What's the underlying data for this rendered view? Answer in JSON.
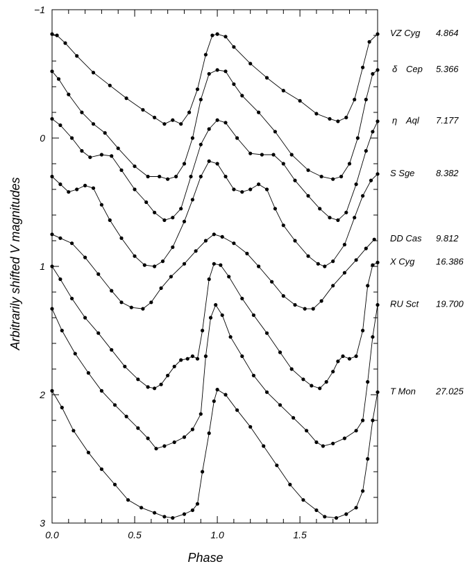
{
  "chart_data": {
    "type": "line",
    "xlabel": "Phase",
    "ylabel": "Arbitrarily shifted V magnitudes",
    "xlim": [
      0.0,
      1.97
    ],
    "ylim": [
      3.0,
      -1.0
    ],
    "y_inverted": true,
    "x_tick_labels": [
      {
        "value": 0.0,
        "label": "0.0"
      },
      {
        "value": 0.5,
        "label": "0.5"
      },
      {
        "value": 1.0,
        "label": "1.0"
      },
      {
        "value": 1.5,
        "label": "1.5"
      }
    ],
    "y_tick_labels": [
      {
        "value": -1,
        "label": "−1"
      },
      {
        "value": 0,
        "label": "0"
      },
      {
        "value": 1,
        "label": "1"
      },
      {
        "value": 2,
        "label": "2"
      },
      {
        "value": 3,
        "label": "3"
      }
    ],
    "grid": false,
    "series": [
      {
        "name": "VZ Cyg",
        "period": "4.864",
        "greek": "",
        "points": [
          [
            0.0,
            -0.81
          ],
          [
            0.03,
            -0.8
          ],
          [
            0.08,
            -0.74
          ],
          [
            0.15,
            -0.64
          ],
          [
            0.25,
            -0.51
          ],
          [
            0.35,
            -0.41
          ],
          [
            0.45,
            -0.31
          ],
          [
            0.55,
            -0.22
          ],
          [
            0.62,
            -0.16
          ],
          [
            0.68,
            -0.11
          ],
          [
            0.73,
            -0.14
          ],
          [
            0.78,
            -0.11
          ],
          [
            0.83,
            -0.2
          ],
          [
            0.88,
            -0.38
          ],
          [
            0.93,
            -0.65
          ],
          [
            0.97,
            -0.8
          ],
          [
            1.0,
            -0.81
          ],
          [
            1.05,
            -0.79
          ],
          [
            1.1,
            -0.71
          ],
          [
            1.2,
            -0.58
          ],
          [
            1.3,
            -0.47
          ],
          [
            1.4,
            -0.37
          ],
          [
            1.5,
            -0.29
          ],
          [
            1.6,
            -0.19
          ],
          [
            1.68,
            -0.15
          ],
          [
            1.73,
            -0.13
          ],
          [
            1.78,
            -0.16
          ],
          [
            1.83,
            -0.3
          ],
          [
            1.88,
            -0.55
          ],
          [
            1.92,
            -0.75
          ],
          [
            1.97,
            -0.81
          ]
        ]
      },
      {
        "name": "Cep",
        "period": "5.366",
        "greek": "δ",
        "points": [
          [
            0.0,
            -0.52
          ],
          [
            0.04,
            -0.46
          ],
          [
            0.1,
            -0.34
          ],
          [
            0.18,
            -0.2
          ],
          [
            0.25,
            -0.11
          ],
          [
            0.32,
            -0.04
          ],
          [
            0.4,
            0.08
          ],
          [
            0.5,
            0.22
          ],
          [
            0.58,
            0.3
          ],
          [
            0.65,
            0.3
          ],
          [
            0.7,
            0.32
          ],
          [
            0.75,
            0.3
          ],
          [
            0.8,
            0.2
          ],
          [
            0.85,
            0.0
          ],
          [
            0.9,
            -0.3
          ],
          [
            0.95,
            -0.5
          ],
          [
            1.0,
            -0.53
          ],
          [
            1.05,
            -0.52
          ],
          [
            1.1,
            -0.42
          ],
          [
            1.15,
            -0.33
          ],
          [
            1.25,
            -0.2
          ],
          [
            1.35,
            -0.05
          ],
          [
            1.45,
            0.13
          ],
          [
            1.55,
            0.25
          ],
          [
            1.63,
            0.3
          ],
          [
            1.7,
            0.32
          ],
          [
            1.75,
            0.3
          ],
          [
            1.8,
            0.2
          ],
          [
            1.85,
            0.0
          ],
          [
            1.9,
            -0.3
          ],
          [
            1.94,
            -0.5
          ],
          [
            1.97,
            -0.53
          ]
        ]
      },
      {
        "name": "Aql",
        "period": "7.177",
        "greek": "η",
        "points": [
          [
            0.0,
            -0.15
          ],
          [
            0.05,
            -0.1
          ],
          [
            0.12,
            0.0
          ],
          [
            0.18,
            0.1
          ],
          [
            0.23,
            0.15
          ],
          [
            0.3,
            0.13
          ],
          [
            0.36,
            0.14
          ],
          [
            0.42,
            0.25
          ],
          [
            0.5,
            0.4
          ],
          [
            0.57,
            0.5
          ],
          [
            0.62,
            0.58
          ],
          [
            0.68,
            0.64
          ],
          [
            0.73,
            0.62
          ],
          [
            0.78,
            0.55
          ],
          [
            0.84,
            0.3
          ],
          [
            0.9,
            0.05
          ],
          [
            0.95,
            -0.07
          ],
          [
            1.0,
            -0.14
          ],
          [
            1.05,
            -0.12
          ],
          [
            1.12,
            0.0
          ],
          [
            1.2,
            0.12
          ],
          [
            1.27,
            0.13
          ],
          [
            1.34,
            0.13
          ],
          [
            1.4,
            0.2
          ],
          [
            1.47,
            0.33
          ],
          [
            1.55,
            0.45
          ],
          [
            1.62,
            0.55
          ],
          [
            1.68,
            0.62
          ],
          [
            1.73,
            0.64
          ],
          [
            1.78,
            0.58
          ],
          [
            1.84,
            0.36
          ],
          [
            1.9,
            0.1
          ],
          [
            1.94,
            -0.05
          ],
          [
            1.97,
            -0.13
          ]
        ]
      },
      {
        "name": "S Sge",
        "period": "8.382",
        "greek": "",
        "points": [
          [
            0.0,
            0.3
          ],
          [
            0.05,
            0.36
          ],
          [
            0.1,
            0.42
          ],
          [
            0.15,
            0.4
          ],
          [
            0.2,
            0.37
          ],
          [
            0.25,
            0.39
          ],
          [
            0.3,
            0.52
          ],
          [
            0.35,
            0.64
          ],
          [
            0.42,
            0.78
          ],
          [
            0.5,
            0.92
          ],
          [
            0.56,
            0.99
          ],
          [
            0.62,
            1.0
          ],
          [
            0.67,
            0.96
          ],
          [
            0.73,
            0.85
          ],
          [
            0.8,
            0.65
          ],
          [
            0.85,
            0.48
          ],
          [
            0.9,
            0.3
          ],
          [
            0.95,
            0.18
          ],
          [
            1.0,
            0.2
          ],
          [
            1.05,
            0.3
          ],
          [
            1.1,
            0.4
          ],
          [
            1.15,
            0.42
          ],
          [
            1.2,
            0.4
          ],
          [
            1.25,
            0.36
          ],
          [
            1.3,
            0.4
          ],
          [
            1.35,
            0.55
          ],
          [
            1.4,
            0.68
          ],
          [
            1.47,
            0.8
          ],
          [
            1.55,
            0.92
          ],
          [
            1.61,
            0.98
          ],
          [
            1.65,
            1.0
          ],
          [
            1.7,
            0.96
          ],
          [
            1.77,
            0.83
          ],
          [
            1.83,
            0.62
          ],
          [
            1.88,
            0.45
          ],
          [
            1.93,
            0.33
          ],
          [
            1.97,
            0.28
          ]
        ]
      },
      {
        "name": "DD Cas",
        "period": "9.812",
        "greek": "",
        "points": [
          [
            0.0,
            0.75
          ],
          [
            0.05,
            0.78
          ],
          [
            0.12,
            0.82
          ],
          [
            0.2,
            0.93
          ],
          [
            0.28,
            1.06
          ],
          [
            0.36,
            1.19
          ],
          [
            0.42,
            1.28
          ],
          [
            0.48,
            1.32
          ],
          [
            0.55,
            1.33
          ],
          [
            0.6,
            1.28
          ],
          [
            0.66,
            1.17
          ],
          [
            0.72,
            1.08
          ],
          [
            0.8,
            0.98
          ],
          [
            0.87,
            0.88
          ],
          [
            0.93,
            0.8
          ],
          [
            0.98,
            0.75
          ],
          [
            1.03,
            0.77
          ],
          [
            1.1,
            0.82
          ],
          [
            1.18,
            0.9
          ],
          [
            1.25,
            1.0
          ],
          [
            1.33,
            1.12
          ],
          [
            1.4,
            1.23
          ],
          [
            1.47,
            1.3
          ],
          [
            1.53,
            1.33
          ],
          [
            1.58,
            1.33
          ],
          [
            1.63,
            1.27
          ],
          [
            1.7,
            1.15
          ],
          [
            1.77,
            1.05
          ],
          [
            1.84,
            0.95
          ],
          [
            1.9,
            0.86
          ],
          [
            1.95,
            0.79
          ]
        ]
      },
      {
        "name": "X Cyg",
        "period": "16.386",
        "greek": "",
        "points": [
          [
            0.0,
            1.0
          ],
          [
            0.05,
            1.1
          ],
          [
            0.12,
            1.25
          ],
          [
            0.2,
            1.4
          ],
          [
            0.28,
            1.52
          ],
          [
            0.36,
            1.65
          ],
          [
            0.44,
            1.78
          ],
          [
            0.52,
            1.88
          ],
          [
            0.58,
            1.94
          ],
          [
            0.62,
            1.95
          ],
          [
            0.66,
            1.92
          ],
          [
            0.7,
            1.85
          ],
          [
            0.74,
            1.78
          ],
          [
            0.78,
            1.73
          ],
          [
            0.82,
            1.72
          ],
          [
            0.85,
            1.7
          ],
          [
            0.88,
            1.72
          ],
          [
            0.91,
            1.5
          ],
          [
            0.95,
            1.1
          ],
          [
            0.98,
            0.98
          ],
          [
            1.02,
            0.99
          ],
          [
            1.07,
            1.08
          ],
          [
            1.15,
            1.25
          ],
          [
            1.22,
            1.38
          ],
          [
            1.3,
            1.52
          ],
          [
            1.38,
            1.67
          ],
          [
            1.45,
            1.8
          ],
          [
            1.52,
            1.88
          ],
          [
            1.57,
            1.93
          ],
          [
            1.62,
            1.95
          ],
          [
            1.66,
            1.9
          ],
          [
            1.7,
            1.82
          ],
          [
            1.73,
            1.74
          ],
          [
            1.76,
            1.7
          ],
          [
            1.8,
            1.72
          ],
          [
            1.84,
            1.7
          ],
          [
            1.88,
            1.5
          ],
          [
            1.91,
            1.15
          ],
          [
            1.94,
            0.99
          ],
          [
            1.97,
            0.97
          ]
        ]
      },
      {
        "name": "RU Sct",
        "period": "19.700",
        "greek": "",
        "points": [
          [
            0.0,
            1.33
          ],
          [
            0.06,
            1.5
          ],
          [
            0.14,
            1.68
          ],
          [
            0.22,
            1.83
          ],
          [
            0.3,
            1.97
          ],
          [
            0.38,
            2.08
          ],
          [
            0.45,
            2.17
          ],
          [
            0.52,
            2.26
          ],
          [
            0.58,
            2.34
          ],
          [
            0.63,
            2.42
          ],
          [
            0.68,
            2.4
          ],
          [
            0.74,
            2.37
          ],
          [
            0.8,
            2.33
          ],
          [
            0.85,
            2.27
          ],
          [
            0.9,
            2.15
          ],
          [
            0.93,
            1.7
          ],
          [
            0.96,
            1.4
          ],
          [
            0.99,
            1.3
          ],
          [
            1.03,
            1.38
          ],
          [
            1.08,
            1.55
          ],
          [
            1.15,
            1.7
          ],
          [
            1.22,
            1.85
          ],
          [
            1.3,
            1.98
          ],
          [
            1.38,
            2.08
          ],
          [
            1.46,
            2.18
          ],
          [
            1.54,
            2.28
          ],
          [
            1.6,
            2.37
          ],
          [
            1.64,
            2.4
          ],
          [
            1.7,
            2.38
          ],
          [
            1.77,
            2.34
          ],
          [
            1.84,
            2.28
          ],
          [
            1.88,
            2.2
          ],
          [
            1.91,
            1.9
          ],
          [
            1.94,
            1.55
          ],
          [
            1.97,
            1.3
          ]
        ]
      },
      {
        "name": "T Mon",
        "period": "27.025",
        "greek": "",
        "points": [
          [
            0.0,
            1.97
          ],
          [
            0.06,
            2.1
          ],
          [
            0.13,
            2.28
          ],
          [
            0.22,
            2.45
          ],
          [
            0.3,
            2.58
          ],
          [
            0.38,
            2.7
          ],
          [
            0.46,
            2.82
          ],
          [
            0.54,
            2.88
          ],
          [
            0.62,
            2.92
          ],
          [
            0.68,
            2.95
          ],
          [
            0.73,
            2.96
          ],
          [
            0.8,
            2.93
          ],
          [
            0.85,
            2.9
          ],
          [
            0.88,
            2.85
          ],
          [
            0.91,
            2.6
          ],
          [
            0.95,
            2.3
          ],
          [
            0.98,
            2.05
          ],
          [
            1.0,
            1.96
          ],
          [
            1.05,
            2.0
          ],
          [
            1.12,
            2.12
          ],
          [
            1.2,
            2.25
          ],
          [
            1.28,
            2.4
          ],
          [
            1.36,
            2.55
          ],
          [
            1.44,
            2.7
          ],
          [
            1.52,
            2.82
          ],
          [
            1.6,
            2.9
          ],
          [
            1.65,
            2.95
          ],
          [
            1.72,
            2.96
          ],
          [
            1.78,
            2.93
          ],
          [
            1.84,
            2.88
          ],
          [
            1.88,
            2.75
          ],
          [
            1.91,
            2.5
          ],
          [
            1.94,
            2.2
          ],
          [
            1.97,
            1.98
          ]
        ]
      }
    ]
  }
}
